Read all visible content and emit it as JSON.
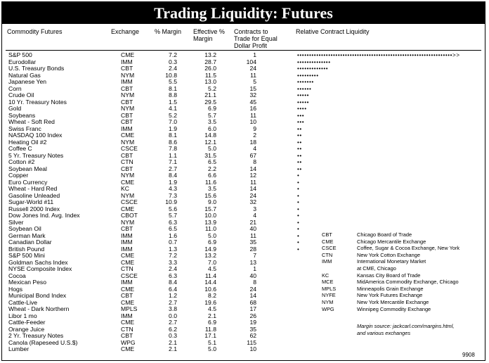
{
  "title": "Trading Liquidity: Futures",
  "headers": {
    "commodity": "Commodity Futures",
    "exchange": "Exchange",
    "margin": "% Margin",
    "effective_1": "Effective %",
    "effective_2": "Margin",
    "contracts_1": "Contracts to",
    "contracts_2": "Trade for Equal",
    "contracts_3": "Dollar Profit",
    "liquidity": "Relative Contract Liquidity"
  },
  "rows": [
    {
      "name": "S&P 500",
      "exchange": "CME",
      "margin": "7.2",
      "effective": "13.2",
      "contracts": "1",
      "dots": "•••••••••••••••••••••••••••••••••••••••••••••••••••••••••••••••••>>"
    },
    {
      "name": "Eurodollar",
      "exchange": "IMM",
      "margin": "0.3",
      "effective": "28.7",
      "contracts": "104",
      "dots": "••••••••••••••"
    },
    {
      "name": "U.S. Treasury Bonds",
      "exchange": "CBT",
      "margin": "2.4",
      "effective": "26.0",
      "contracts": "24",
      "dots": "•••••••••••••"
    },
    {
      "name": "Natural Gas",
      "exchange": "NYM",
      "margin": "10.8",
      "effective": "11.5",
      "contracts": "11",
      "dots": "•••••••••"
    },
    {
      "name": "Japanese Yen",
      "exchange": "IMM",
      "margin": "5.5",
      "effective": "13.0",
      "contracts": "5",
      "dots": "•••••••"
    },
    {
      "name": "Corn",
      "exchange": "CBT",
      "margin": "8.1",
      "effective": "5.2",
      "contracts": "15",
      "dots": "••••••"
    },
    {
      "name": "Crude Oil",
      "exchange": "NYM",
      "margin": "8.8",
      "effective": "21.1",
      "contracts": "32",
      "dots": "•••••"
    },
    {
      "name": "10 Yr. Treasury Notes",
      "exchange": "CBT",
      "margin": "1.5",
      "effective": "29.5",
      "contracts": "45",
      "dots": "•••••"
    },
    {
      "name": "Gold",
      "exchange": "NYM",
      "margin": "4.1",
      "effective": "6.9",
      "contracts": "16",
      "dots": "••••"
    },
    {
      "name": "Soybeans",
      "exchange": "CBT",
      "margin": "5.2",
      "effective": "5.7",
      "contracts": "11",
      "dots": "•••"
    },
    {
      "name": "Wheat - Soft Red",
      "exchange": "CBT",
      "margin": "7.0",
      "effective": "3.5",
      "contracts": "10",
      "dots": "•••"
    },
    {
      "name": "Swiss Franc",
      "exchange": "IMM",
      "margin": "1.9",
      "effective": "6.0",
      "contracts": "9",
      "dots": "••"
    },
    {
      "name": "NASDAQ 100 Index",
      "exchange": "CME",
      "margin": "8.1",
      "effective": "14.8",
      "contracts": "2",
      "dots": "••"
    },
    {
      "name": "Heating Oil #2",
      "exchange": "NYM",
      "margin": "8.6",
      "effective": "12.1",
      "contracts": "18",
      "dots": "••"
    },
    {
      "name": "Coffee C",
      "exchange": "CSCE",
      "margin": "7.8",
      "effective": "5.0",
      "contracts": "4",
      "dots": "••"
    },
    {
      "name": "5 Yr. Treasury Notes",
      "exchange": "CBT",
      "margin": "1.1",
      "effective": "31.5",
      "contracts": "67",
      "dots": "••"
    },
    {
      "name": "Cotton #2",
      "exchange": "CTN",
      "margin": "7.1",
      "effective": "6.5",
      "contracts": "8",
      "dots": "••"
    },
    {
      "name": "Soybean Meal",
      "exchange": "CBT",
      "margin": "2.7",
      "effective": "2.2",
      "contracts": "14",
      "dots": "••"
    },
    {
      "name": "Copper",
      "exchange": "NYM",
      "margin": "8.4",
      "effective": "6.6",
      "contracts": "12",
      "dots": "•"
    },
    {
      "name": "Euro Currency",
      "exchange": "CME",
      "margin": "1.9",
      "effective": "11.6",
      "contracts": "11",
      "dots": "•"
    },
    {
      "name": "Wheat - Hard Red",
      "exchange": "KC",
      "margin": "4.3",
      "effective": "3.5",
      "contracts": "14",
      "dots": "•"
    },
    {
      "name": "Gasoline Unleaded",
      "exchange": "NYM",
      "margin": "7.3",
      "effective": "15.6",
      "contracts": "24",
      "dots": "•"
    },
    {
      "name": "Sugar-World #11",
      "exchange": "CSCE",
      "margin": "10.9",
      "effective": "9.0",
      "contracts": "32",
      "dots": "•"
    },
    {
      "name": "Russell 2000 Index",
      "exchange": "CME",
      "margin": "5.6",
      "effective": "15.7",
      "contracts": "3",
      "dots": "•"
    },
    {
      "name": "Dow Jones Ind. Avg. Index",
      "exchange": "CBOT",
      "margin": "5.7",
      "effective": "10.0",
      "contracts": "4",
      "dots": "•"
    },
    {
      "name": "Silver",
      "exchange": "NYM",
      "margin": "6.3",
      "effective": "13.9",
      "contracts": "21",
      "dots": "•"
    },
    {
      "name": "Soybean Oil",
      "exchange": "CBT",
      "margin": "6.5",
      "effective": "11.0",
      "contracts": "40",
      "dots": "•"
    },
    {
      "name": "German Mark",
      "exchange": "IMM",
      "margin": "1.6",
      "effective": "5.0",
      "contracts": "11",
      "dots": "•"
    },
    {
      "name": "Canadian Dollar",
      "exchange": "IMM",
      "margin": "0.7",
      "effective": "6.9",
      "contracts": "35",
      "dots": "•"
    },
    {
      "name": "British Pound",
      "exchange": "IMM",
      "margin": "1.3",
      "effective": "14.9",
      "contracts": "28",
      "dots": "•"
    },
    {
      "name": "S&P 500 Mini",
      "exchange": "CME",
      "margin": "7.2",
      "effective": "13.2",
      "contracts": "7",
      "dots": ""
    },
    {
      "name": "Goldman Sachs Index",
      "exchange": "CME",
      "margin": "3.3",
      "effective": "7.0",
      "contracts": "13",
      "dots": ""
    },
    {
      "name": "NYSE Composite Index",
      "exchange": "CTN",
      "margin": "2.4",
      "effective": "4.5",
      "contracts": "1",
      "dots": ""
    },
    {
      "name": "Cocoa",
      "exchange": "CSCE",
      "margin": "6.3",
      "effective": "11.4",
      "contracts": "40",
      "dots": ""
    },
    {
      "name": "Mexican Peso",
      "exchange": "IMM",
      "margin": "8.4",
      "effective": "14.4",
      "contracts": "8",
      "dots": ""
    },
    {
      "name": "Hogs",
      "exchange": "CME",
      "margin": "6.4",
      "effective": "10.6",
      "contracts": "24",
      "dots": ""
    },
    {
      "name": "Municipal Bond Index",
      "exchange": "CBT",
      "margin": "1.2",
      "effective": "8.2",
      "contracts": "14",
      "dots": ""
    },
    {
      "name": "Cattle-Live",
      "exchange": "CME",
      "margin": "2.7",
      "effective": "19.6",
      "contracts": "68",
      "dots": ""
    },
    {
      "name": "Wheat - Dark Northern",
      "exchange": "MPLS",
      "margin": "3.8",
      "effective": "4.5",
      "contracts": "17",
      "dots": ""
    },
    {
      "name": "Libor 1 mo",
      "exchange": "IMM",
      "margin": "0.0",
      "effective": "2.1",
      "contracts": "26",
      "dots": ""
    },
    {
      "name": "Cattle-Feeder",
      "exchange": "CME",
      "margin": "2.7",
      "effective": "6.9",
      "contracts": "19",
      "dots": ""
    },
    {
      "name": "Orange Juice",
      "exchange": "CTN",
      "margin": "6.2",
      "effective": "11.8",
      "contracts": "35",
      "dots": ""
    },
    {
      "name": "2 Yr. Treasury Notes",
      "exchange": "CBT",
      "margin": "0.3",
      "effective": "17.1",
      "contracts": "62",
      "dots": ""
    },
    {
      "name": "Canola (Rapeseed U.S.$)",
      "exchange": "WPG",
      "margin": "2.1",
      "effective": "5.1",
      "contracts": "115",
      "dots": ""
    },
    {
      "name": "Lumber",
      "exchange": "CME",
      "margin": "2.1",
      "effective": "5.0",
      "contracts": "10",
      "dots": ""
    }
  ],
  "legend": [
    {
      "code": "CBT",
      "desc": "Chicago Board of Trade"
    },
    {
      "code": "CME",
      "desc": "Chicago Mercantile Exchange"
    },
    {
      "code": "CSCE",
      "desc": "Coffee, Sugar & Cocoa Exchange, New York"
    },
    {
      "code": "CTN",
      "desc": "New York Cotton Exchange"
    },
    {
      "code": "IMM",
      "desc": "International Monetary Market"
    },
    {
      "code": "",
      "desc": "at CME, Chicago"
    },
    {
      "code": "KC",
      "desc": "Kansas City Board of Trade"
    },
    {
      "code": "MCE",
      "desc": "MidAmerica Commodity Exchange, Chicago"
    },
    {
      "code": "MPLS",
      "desc": "Minneapolis Grain Exchange"
    },
    {
      "code": "NYFE",
      "desc": "New York Futures Exchange"
    },
    {
      "code": "NYM",
      "desc": "New York Mercantile Exchange"
    },
    {
      "code": "WPG",
      "desc": "Winnipeg Commodity Exchange"
    }
  ],
  "source": {
    "line1": "Margin source: jackcarl.com/margins.html,",
    "line2": "and various exchanges"
  },
  "page_number": "9908"
}
